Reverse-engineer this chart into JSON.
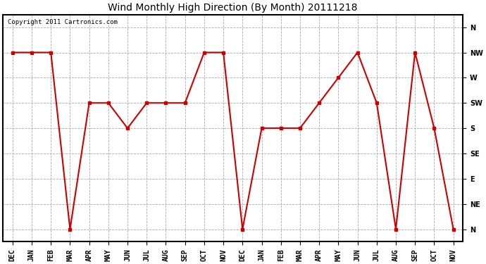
{
  "title": "Wind Monthly High Direction (By Month) 20111218",
  "copyright": "Copyright 2011 Cartronics.com",
  "x_labels": [
    "DEC",
    "JAN",
    "FEB",
    "MAR",
    "APR",
    "MAY",
    "JUN",
    "JUL",
    "AUG",
    "SEP",
    "OCT",
    "NOV",
    "DEC",
    "JAN",
    "FEB",
    "MAR",
    "APR",
    "MAY",
    "JUN",
    "JUL",
    "AUG",
    "SEP",
    "OCT",
    "NOV"
  ],
  "y_labels": [
    "N",
    "NE",
    "E",
    "SE",
    "S",
    "SW",
    "W",
    "NW",
    "N"
  ],
  "y_values": [
    7,
    7,
    7,
    0,
    5,
    5,
    4,
    5,
    5,
    5,
    7,
    7,
    0,
    4,
    4,
    4,
    5,
    6,
    7,
    5,
    0,
    7,
    4,
    0
  ],
  "line_color": "#cc0000",
  "marker": "s",
  "marker_color": "#cc0000",
  "marker_size": 3,
  "line_width": 1.5,
  "fig_bg_color": "#ffffff",
  "plot_bg_color": "#ffffff",
  "grid_color": "#aaaaaa",
  "title_fontsize": 10,
  "tick_fontsize": 7,
  "copyright_fontsize": 6.5
}
